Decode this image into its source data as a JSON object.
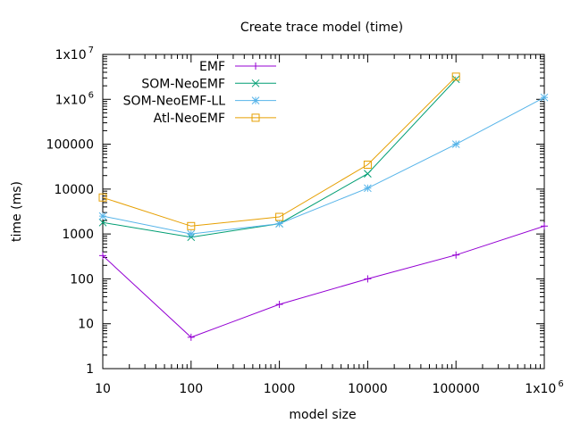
{
  "chart_data": {
    "type": "line",
    "title": "Create trace model (time)",
    "xlabel": "model size",
    "ylabel": "time (ms)",
    "xscale": "log",
    "yscale": "log",
    "xlim": [
      10,
      1000000
    ],
    "ylim": [
      1,
      10000000
    ],
    "grid": false,
    "legend_position": "top-left",
    "x_ticks": [
      {
        "value": 10,
        "label": "10"
      },
      {
        "value": 100,
        "label": "100"
      },
      {
        "value": 1000,
        "label": "1000"
      },
      {
        "value": 10000,
        "label": "10000"
      },
      {
        "value": 100000,
        "label": "100000"
      },
      {
        "value": 1000000,
        "label": "1x10",
        "exp": "6"
      }
    ],
    "y_ticks": [
      {
        "value": 1,
        "label": "1"
      },
      {
        "value": 10,
        "label": "10"
      },
      {
        "value": 100,
        "label": "100"
      },
      {
        "value": 1000,
        "label": "1000"
      },
      {
        "value": 10000,
        "label": "10000"
      },
      {
        "value": 100000,
        "label": "100000"
      },
      {
        "value": 1000000,
        "label": "1x10",
        "exp": "6"
      },
      {
        "value": 10000000,
        "label": "1x10",
        "exp": "7"
      }
    ],
    "series": [
      {
        "name": "EMF",
        "color": "#9400d3",
        "marker": "plus",
        "x": [
          10,
          100,
          1000,
          10000,
          100000,
          1000000
        ],
        "y": [
          330,
          5,
          27,
          100,
          340,
          1500
        ]
      },
      {
        "name": "SOM-NeoEMF",
        "color": "#009e73",
        "marker": "cross",
        "x": [
          10,
          100,
          1000,
          10000,
          100000
        ],
        "y": [
          1800,
          850,
          1700,
          22000,
          2800000
        ]
      },
      {
        "name": "SOM-NeoEMF-LL",
        "color": "#56b4e9",
        "marker": "star",
        "x": [
          10,
          100,
          1000,
          10000,
          100000,
          1000000
        ],
        "y": [
          2500,
          1000,
          1700,
          10500,
          100000,
          1100000
        ]
      },
      {
        "name": "Atl-NeoEMF",
        "color": "#e69f00",
        "marker": "square",
        "x": [
          10,
          100,
          1000,
          10000,
          100000
        ],
        "y": [
          6500,
          1500,
          2400,
          35000,
          3200000
        ]
      }
    ]
  }
}
